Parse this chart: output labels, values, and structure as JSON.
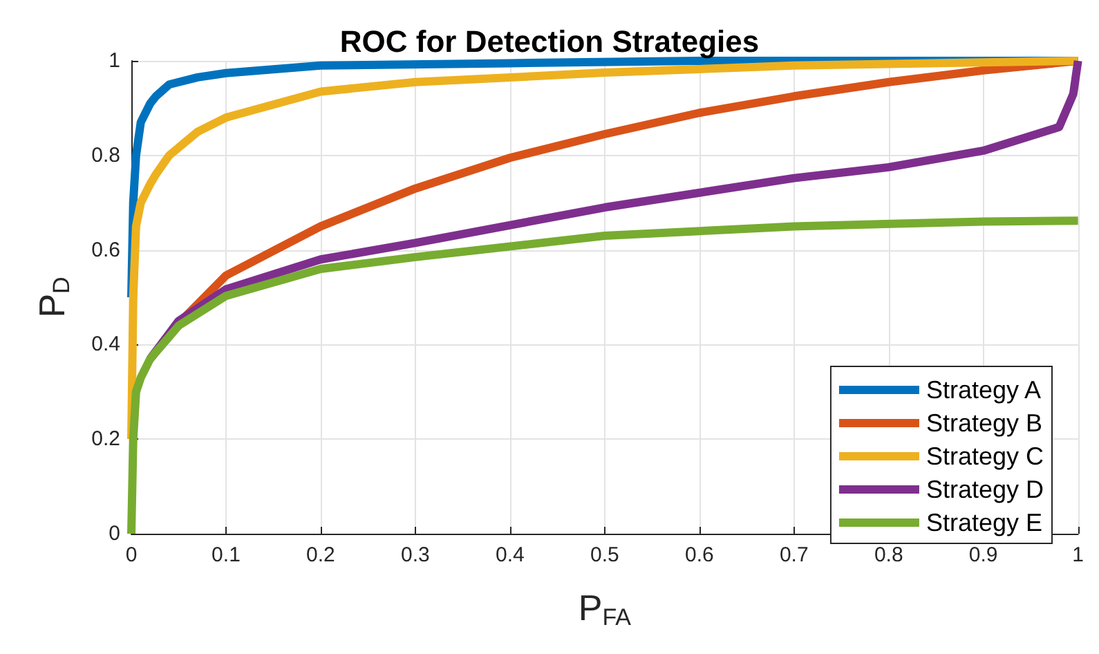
{
  "chart_data": {
    "type": "line",
    "title": "ROC for Detection Strategies",
    "xlabel": "P$_{FA}$",
    "ylabel": "P$_{D}$",
    "xlim": [
      0,
      1
    ],
    "ylim": [
      0,
      1
    ],
    "xticks": [
      0,
      0.1,
      0.2,
      0.3,
      0.4,
      0.5,
      0.6,
      0.7,
      0.8,
      0.9,
      1
    ],
    "yticks": [
      0,
      0.2,
      0.4,
      0.6,
      0.8,
      1
    ],
    "grid": true,
    "legend": "bottom right",
    "marker": "none",
    "line_style": "solid",
    "series": [
      {
        "name": "Strategy A",
        "color": "#0072bd",
        "x": [
          0,
          0.002,
          0.005,
          0.01,
          0.02,
          0.026,
          0.04,
          0.07,
          0.1,
          0.2,
          0.4,
          0.6,
          1
        ],
        "values": [
          0.5,
          0.7,
          0.8,
          0.87,
          0.91,
          0.925,
          0.95,
          0.965,
          0.974,
          0.99,
          0.995,
          1,
          1
        ]
      },
      {
        "name": "Strategy B",
        "color": "#d95319",
        "x": [
          0.02,
          0.05,
          0.1,
          0.2,
          0.3,
          0.4,
          0.5,
          0.6,
          0.7,
          0.8,
          0.9,
          1
        ],
        "values": [
          0.37,
          0.445,
          0.546,
          0.65,
          0.73,
          0.795,
          0.845,
          0.89,
          0.925,
          0.955,
          0.98,
          1
        ]
      },
      {
        "name": "Strategy C",
        "color": "#edb120",
        "x": [
          0,
          0.002,
          0.005,
          0.01,
          0.02,
          0.026,
          0.04,
          0.07,
          0.1,
          0.2,
          0.3,
          0.5,
          0.7,
          1
        ],
        "values": [
          0.2,
          0.5,
          0.65,
          0.7,
          0.74,
          0.76,
          0.8,
          0.85,
          0.88,
          0.935,
          0.955,
          0.975,
          0.99,
          1
        ]
      },
      {
        "name": "Strategy D",
        "color": "#7e2f8e",
        "x": [
          0.02,
          0.05,
          0.1,
          0.2,
          0.3,
          0.5,
          0.7,
          0.8,
          0.9,
          0.98,
          0.995,
          1
        ],
        "values": [
          0.37,
          0.45,
          0.517,
          0.58,
          0.615,
          0.69,
          0.752,
          0.775,
          0.81,
          0.86,
          0.93,
          1
        ]
      },
      {
        "name": "Strategy E",
        "color": "#77ac30",
        "x": [
          0,
          0.002,
          0.005,
          0.01,
          0.02,
          0.05,
          0.1,
          0.2,
          0.3,
          0.5,
          0.7,
          0.9,
          1
        ],
        "values": [
          0,
          0.2,
          0.3,
          0.33,
          0.37,
          0.44,
          0.503,
          0.56,
          0.585,
          0.63,
          0.65,
          0.66,
          0.662
        ]
      }
    ]
  }
}
